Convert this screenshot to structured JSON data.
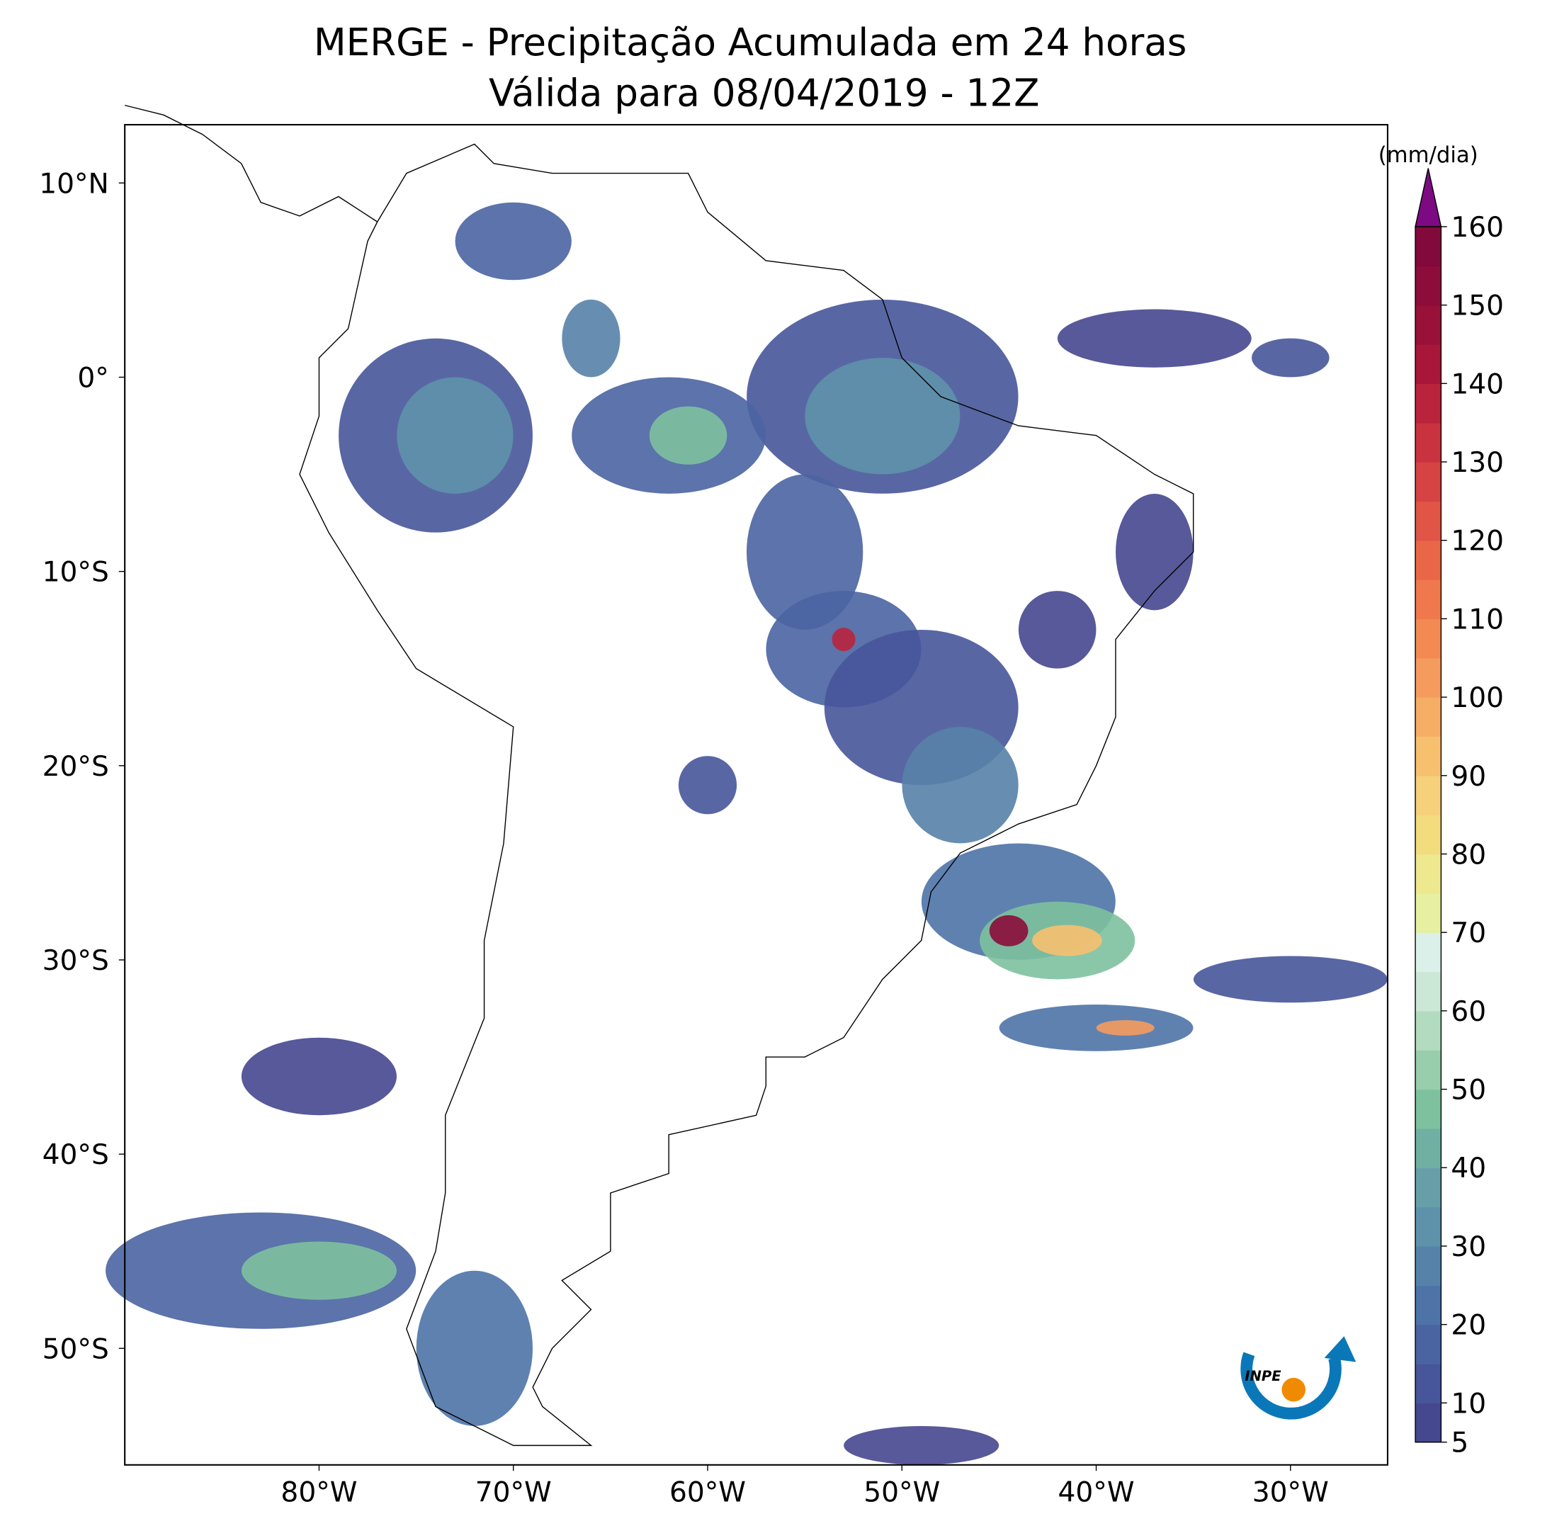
{
  "title": "MERGE - Precipitação Acumulada em 24 horas",
  "subtitle": "Válida para 08/04/2019 - 12Z",
  "map": {
    "lon_range": [
      -90,
      -25
    ],
    "lat_range": [
      -56,
      13
    ],
    "lon_ticks": [
      {
        "value": -80,
        "label": "80°W"
      },
      {
        "value": -70,
        "label": "70°W"
      },
      {
        "value": -60,
        "label": "60°W"
      },
      {
        "value": -50,
        "label": "50°W"
      },
      {
        "value": -40,
        "label": "40°W"
      },
      {
        "value": -30,
        "label": "30°W"
      }
    ],
    "lat_ticks": [
      {
        "value": 10,
        "label": "10°N"
      },
      {
        "value": 0,
        "label": "0°"
      },
      {
        "value": -10,
        "label": "10°S"
      },
      {
        "value": -20,
        "label": "20°S"
      },
      {
        "value": -30,
        "label": "30°S"
      },
      {
        "value": -40,
        "label": "40°S"
      },
      {
        "value": -50,
        "label": "50°S"
      }
    ]
  },
  "colorbar": {
    "unit": "(mm/dia)",
    "levels": [
      5,
      10,
      15,
      20,
      25,
      30,
      35,
      40,
      45,
      50,
      55,
      60,
      65,
      70,
      75,
      80,
      85,
      90,
      95,
      100,
      105,
      110,
      115,
      120,
      125,
      130,
      135,
      140,
      145,
      150,
      155,
      160
    ],
    "colors": [
      "#45478f",
      "#47559a",
      "#4a64a2",
      "#4e73a7",
      "#5682a9",
      "#5e92ab",
      "#679fa9",
      "#70b0a2",
      "#7dc19f",
      "#98ceab",
      "#b3dbbf",
      "#cbe7d6",
      "#dcf0ea",
      "#e6f0a0",
      "#eee98e",
      "#f3dc7e",
      "#f6d07a",
      "#f7c06f",
      "#f6ae66",
      "#f59b5e",
      "#f38a54",
      "#ef784d",
      "#e96747",
      "#e05545",
      "#d54343",
      "#c9333f",
      "#b9233c",
      "#a8163a",
      "#991039",
      "#8c0c3a",
      "#82093c"
    ],
    "extend_color": "#7d0a82",
    "ticks": [
      5,
      10,
      20,
      30,
      40,
      50,
      60,
      70,
      80,
      90,
      100,
      110,
      120,
      130,
      140,
      150,
      160
    ]
  },
  "logo_text": "INPE"
}
